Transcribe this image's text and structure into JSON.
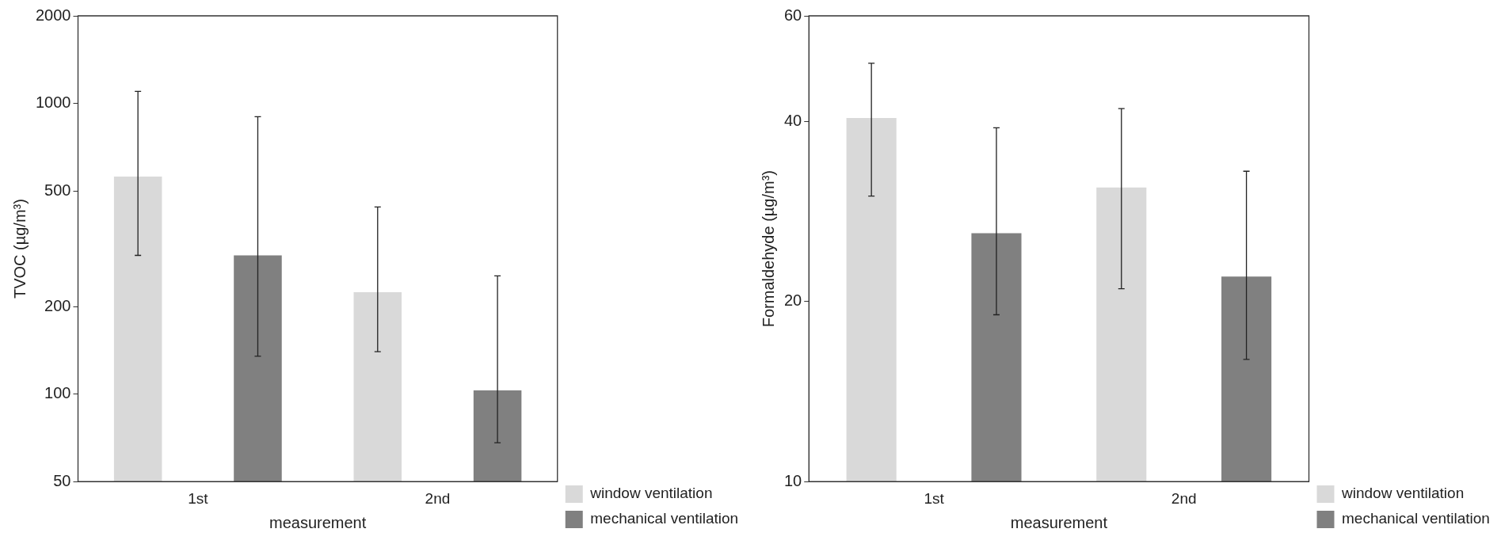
{
  "chart_data": [
    {
      "type": "bar",
      "ylabel": "TVOC (µg/m³)",
      "xlabel": "measurement",
      "categories": [
        "1st",
        "2nd"
      ],
      "log": "y",
      "ylim": [
        50,
        2000
      ],
      "yticks": [
        50,
        100,
        200,
        500,
        1000,
        2000
      ],
      "legend": "bottom right",
      "grid": false,
      "series": [
        {
          "name": "window ventilation",
          "color": "#d9d9d9",
          "values": [
            560,
            224
          ],
          "errors": [
            [
              300,
              1100
            ],
            [
              140,
              440
            ]
          ]
        },
        {
          "name": "mechanical ventilation",
          "color": "#808080",
          "values": [
            300,
            103
          ],
          "errors": [
            [
              135,
              900
            ],
            [
              68,
              255
            ]
          ]
        }
      ]
    },
    {
      "type": "bar",
      "ylabel": "Formaldehyde (µg/m³)",
      "xlabel": "measurement",
      "categories": [
        "1st",
        "2nd"
      ],
      "log": "y",
      "ylim": [
        10,
        60
      ],
      "yticks": [
        10,
        20,
        40,
        60
      ],
      "legend": "bottom right",
      "grid": false,
      "series": [
        {
          "name": "window ventilation",
          "color": "#d9d9d9",
          "values": [
            40.5,
            31
          ],
          "errors": [
            [
              30,
              50
            ],
            [
              21,
              42
            ]
          ]
        },
        {
          "name": "mechanical ventilation",
          "color": "#808080",
          "values": [
            26,
            22
          ],
          "errors": [
            [
              19,
              39
            ],
            [
              16,
              33
            ]
          ]
        }
      ]
    }
  ]
}
